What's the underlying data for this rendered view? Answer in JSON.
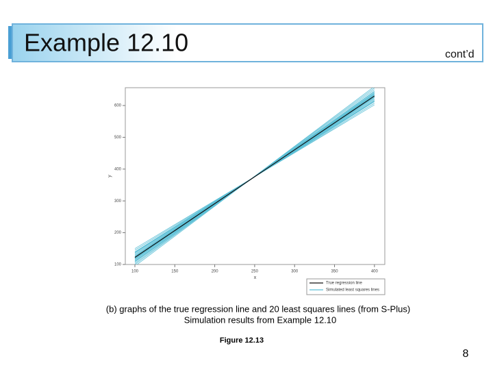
{
  "slide": {
    "title": "Example 12.10",
    "continued": "cont’d",
    "caption": [
      "(b) graphs of the true regression line and 20 least squares lines (from S-Plus)",
      "Simulation results from Example 12.10"
    ],
    "figure_label": "Figure 12.13",
    "page_number": "8"
  },
  "chart_data": {
    "type": "line",
    "x_label": "x",
    "y_label": "y",
    "x": [
      100,
      400
    ],
    "xlim": [
      88,
      413
    ],
    "ylim": [
      100,
      656
    ],
    "xticks": [
      100,
      150,
      200,
      250,
      300,
      350,
      400
    ],
    "yticks": [
      100,
      200,
      300,
      400,
      500,
      600
    ],
    "legend": "bottom-right",
    "series": [
      {
        "name": "True regression line",
        "color": "#111111",
        "values": [
          122,
          630
        ]
      },
      {
        "name": "Simulated least squares lines",
        "color": "#5bbfd6",
        "lines": [
          [
            100,
            655
          ],
          [
            108,
            645
          ],
          [
            112,
            640
          ],
          [
            115,
            638
          ],
          [
            118,
            634
          ],
          [
            120,
            632
          ],
          [
            124,
            628
          ],
          [
            127,
            625
          ],
          [
            130,
            622
          ],
          [
            133,
            619
          ],
          [
            136,
            616
          ],
          [
            140,
            612
          ],
          [
            145,
            607
          ],
          [
            150,
            602
          ],
          [
            104,
            650
          ],
          [
            110,
            643
          ],
          [
            117,
            636
          ],
          [
            126,
            626
          ],
          [
            138,
            614
          ],
          [
            95,
            660
          ]
        ]
      }
    ]
  }
}
